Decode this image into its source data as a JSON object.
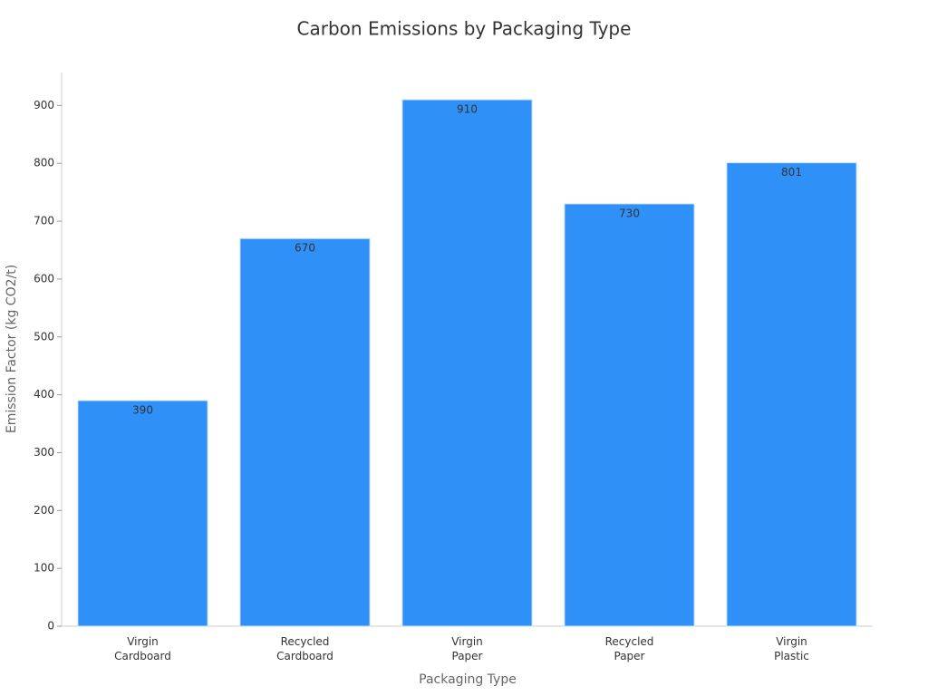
{
  "chart_data": {
    "type": "bar",
    "title": "Carbon Emissions by Packaging Type",
    "x_label": "Packaging Type",
    "y_label": "Emission Factor (kg CO2/t)",
    "categories": [
      "Virgin\nCardboard",
      "Recycled\nCardboard",
      "Virgin\nPaper",
      "Recycled\nPaper",
      "Virgin\nPlastic"
    ],
    "values": [
      390,
      670,
      910,
      730,
      801
    ],
    "color": "#2f91f7",
    "ylim": [
      0,
      957
    ],
    "yticks": [
      0,
      100,
      200,
      300,
      400,
      500,
      600,
      700,
      800,
      900
    ],
    "grid": false
  }
}
